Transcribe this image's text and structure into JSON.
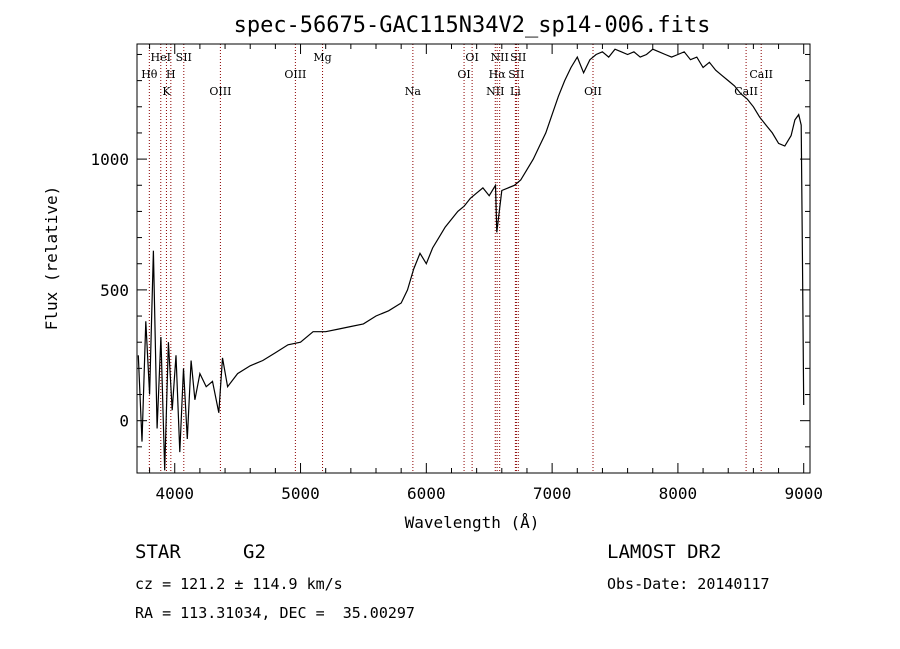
{
  "chart_data": {
    "type": "line",
    "title": "spec-56675-GAC115N34V2_sp14-006.fits",
    "xlabel": "Wavelength (Å)",
    "ylabel": "Flux (relative)",
    "xlim": [
      3700,
      9050
    ],
    "ylim": [
      -200,
      1440
    ],
    "xticks": [
      4000,
      5000,
      6000,
      7000,
      8000,
      9000
    ],
    "yticks": [
      0,
      500,
      1000
    ],
    "line_color": "#000000",
    "marker_color": "#8b0000",
    "series": [
      {
        "x": [
          3710,
          3740,
          3770,
          3800,
          3830,
          3860,
          3890,
          3920,
          3950,
          3980,
          4010,
          4040,
          4070,
          4100,
          4130,
          4160,
          4200,
          4250,
          4300,
          4350,
          4380,
          4420,
          4500,
          4600,
          4700,
          4800,
          4900,
          5000,
          5100,
          5200,
          5300,
          5400,
          5500,
          5600,
          5700,
          5800,
          5850,
          5900,
          5950,
          6000,
          6050,
          6100,
          6150,
          6200,
          6250,
          6300,
          6350,
          6400,
          6450,
          6500,
          6550,
          6560,
          6600,
          6650,
          6700,
          6750,
          6800,
          6850,
          6900,
          6950,
          7000,
          7050,
          7100,
          7150,
          7200,
          7250,
          7300,
          7350,
          7400,
          7450,
          7500,
          7550,
          7600,
          7650,
          7700,
          7750,
          7800,
          7850,
          7900,
          7950,
          8000,
          8050,
          8100,
          8150,
          8200,
          8250,
          8300,
          8350,
          8400,
          8450,
          8500,
          8550,
          8600,
          8650,
          8700,
          8750,
          8800,
          8850,
          8900,
          8930,
          8960,
          8980,
          8990,
          9000
        ],
        "values": [
          250,
          -80,
          380,
          100,
          650,
          -30,
          320,
          -190,
          300,
          40,
          250,
          -120,
          200,
          -70,
          230,
          80,
          180,
          130,
          150,
          30,
          240,
          130,
          180,
          210,
          230,
          260,
          290,
          300,
          340,
          340,
          350,
          360,
          370,
          400,
          420,
          450,
          500,
          580,
          640,
          600,
          660,
          700,
          740,
          770,
          800,
          820,
          850,
          870,
          890,
          860,
          900,
          720,
          880,
          890,
          900,
          920,
          960,
          1000,
          1050,
          1100,
          1170,
          1240,
          1300,
          1350,
          1390,
          1330,
          1380,
          1400,
          1410,
          1390,
          1420,
          1410,
          1400,
          1410,
          1390,
          1400,
          1420,
          1410,
          1400,
          1390,
          1400,
          1410,
          1380,
          1390,
          1350,
          1370,
          1340,
          1320,
          1300,
          1280,
          1250,
          1230,
          1200,
          1160,
          1130,
          1100,
          1060,
          1050,
          1090,
          1150,
          1170,
          1130,
          600,
          60
        ]
      }
    ],
    "lines": [
      {
        "name": "Hθ",
        "x": 3798,
        "row": 2
      },
      {
        "name": "HeI",
        "x": 3889,
        "row": 1
      },
      {
        "name": "K",
        "x": 3934,
        "row": 3
      },
      {
        "name": "H",
        "x": 3969,
        "row": 2
      },
      {
        "name": "SII",
        "x": 4072,
        "row": 1
      },
      {
        "name": "OIII",
        "x": 4363,
        "row": 3
      },
      {
        "name": "OIII",
        "x": 4959,
        "row": 2
      },
      {
        "name": "Mg",
        "x": 5175,
        "row": 1
      },
      {
        "name": "Na",
        "x": 5893,
        "row": 3
      },
      {
        "name": "OI",
        "x": 6300,
        "row": 2
      },
      {
        "name": "OI",
        "x": 6364,
        "row": 1
      },
      {
        "name": "NII",
        "x": 6548,
        "row": 3
      },
      {
        "name": "Hα",
        "x": 6563,
        "row": 2
      },
      {
        "name": "NII",
        "x": 6583,
        "row": 1
      },
      {
        "name": "Li",
        "x": 6708,
        "row": 3
      },
      {
        "name": "SII",
        "x": 6716,
        "row": 2
      },
      {
        "name": "SII",
        "x": 6731,
        "row": 1
      },
      {
        "name": "OII",
        "x": 7325,
        "row": 3
      },
      {
        "name": "CaII",
        "x": 8542,
        "row": 3
      },
      {
        "name": "CaII",
        "x": 8662,
        "row": 2
      }
    ]
  },
  "info": {
    "object_class": "STAR",
    "subclass": "G2",
    "survey": "LAMOST DR2",
    "velocity": "cz = 121.2 ± 114.9 km/s",
    "obs_date": "Obs-Date: 20140117",
    "coords": "RA = 113.31034, DEC =  35.00297"
  }
}
